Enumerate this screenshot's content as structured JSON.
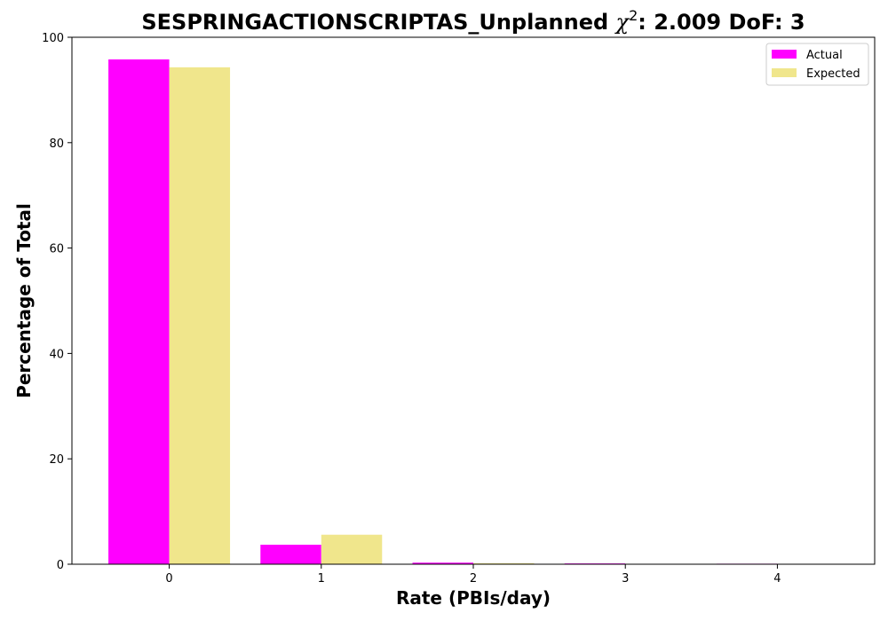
{
  "chart_data": {
    "type": "bar",
    "title_prefix": "SESPRINGACTIONSCRIPTAS_Unplanned ",
    "title_symbol": "χ",
    "title_superscript": "2",
    "title_suffix": ": 2.009 DoF: 3",
    "xlabel": "Rate (PBIs/day)",
    "ylabel": "Percentage of Total",
    "categories": [
      "0",
      "1",
      "2",
      "3",
      "4"
    ],
    "ylim": [
      0,
      100
    ],
    "yticks": [
      "0",
      "20",
      "40",
      "60",
      "80",
      "100"
    ],
    "grid": false,
    "legend_position": "top-right",
    "series": [
      {
        "name": "Actual",
        "color": "#ff00ff",
        "values": [
          95.8,
          3.7,
          0.3,
          0.15,
          0.1
        ]
      },
      {
        "name": "Expected",
        "color": "#f0e68c",
        "values": [
          94.3,
          5.6,
          0.2,
          0.0,
          0.0
        ]
      }
    ]
  }
}
